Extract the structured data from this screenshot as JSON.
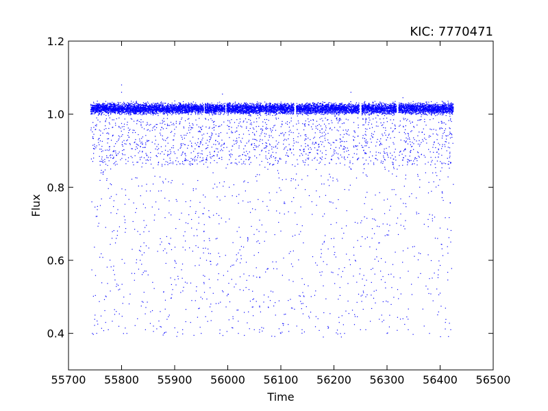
{
  "chart_data": {
    "type": "scatter",
    "title": "KIC: 7770471",
    "xlabel": "Time",
    "ylabel": "Flux",
    "xlim": [
      55700,
      56500
    ],
    "ylim": [
      0.3,
      1.2
    ],
    "xticks": [
      55700,
      55800,
      55900,
      56000,
      56100,
      56200,
      56300,
      56400,
      56500
    ],
    "xtick_labels": [
      "55700",
      "55800",
      "55900",
      "56000",
      "56100",
      "56200",
      "56300",
      "56400",
      "56500"
    ],
    "yticks": [
      0.4,
      0.6,
      0.8,
      1.0,
      1.2
    ],
    "ytick_labels": [
      "0.4",
      "0.6",
      "0.8",
      "1.0",
      "1.2"
    ],
    "grid": false,
    "marker_color": "#0000ff",
    "series": [
      {
        "observation_segments": [
          [
            55742,
            55955
          ],
          [
            55957,
            55995
          ],
          [
            55998,
            56125
          ],
          [
            56129,
            56248
          ],
          [
            56252,
            56318
          ],
          [
            56322,
            56425
          ]
        ],
        "baseline_band": [
          0.995,
          1.035
        ],
        "samples": [
          [
            55800,
            1.08
          ],
          [
            55800,
            1.06
          ],
          [
            55990,
            1.055
          ],
          [
            56232,
            1.06
          ],
          [
            56330,
            1.045
          ],
          [
            55744,
            0.76
          ],
          [
            55752,
            0.72
          ],
          [
            55760,
            0.75
          ],
          [
            55770,
            0.69
          ],
          [
            55780,
            0.73
          ],
          [
            55790,
            0.66
          ],
          [
            55805,
            0.72
          ],
          [
            55820,
            0.63
          ],
          [
            55835,
            0.6
          ],
          [
            55850,
            0.56
          ],
          [
            55870,
            0.74
          ],
          [
            55885,
            0.62
          ],
          [
            55900,
            0.58
          ],
          [
            55920,
            0.54
          ],
          [
            55940,
            0.64
          ],
          [
            55960,
            0.6
          ],
          [
            55980,
            0.66
          ],
          [
            56000,
            0.57
          ],
          [
            56020,
            0.62
          ],
          [
            56040,
            0.52
          ],
          [
            56060,
            0.71
          ],
          [
            56080,
            0.49
          ],
          [
            56100,
            0.68
          ],
          [
            56120,
            0.59
          ],
          [
            56140,
            0.55
          ],
          [
            56160,
            0.61
          ],
          [
            56180,
            0.53
          ],
          [
            56200,
            0.66
          ],
          [
            56220,
            0.58
          ],
          [
            56240,
            0.6
          ],
          [
            56260,
            0.5
          ],
          [
            56280,
            0.63
          ],
          [
            56300,
            0.67
          ],
          [
            56320,
            0.52
          ],
          [
            56340,
            0.57
          ],
          [
            56360,
            0.62
          ],
          [
            56380,
            0.55
          ],
          [
            56400,
            0.51
          ],
          [
            56420,
            0.65
          ],
          [
            55750,
            0.45
          ],
          [
            55770,
            0.43
          ],
          [
            55790,
            0.46
          ],
          [
            55830,
            0.44
          ],
          [
            55860,
            0.42
          ],
          [
            55890,
            0.45
          ],
          [
            55930,
            0.43
          ],
          [
            55970,
            0.46
          ],
          [
            56010,
            0.44
          ],
          [
            56050,
            0.41
          ],
          [
            56090,
            0.45
          ],
          [
            56130,
            0.42
          ],
          [
            56170,
            0.44
          ],
          [
            56210,
            0.43
          ],
          [
            56250,
            0.41
          ],
          [
            56290,
            0.45
          ],
          [
            56330,
            0.44
          ],
          [
            56370,
            0.42
          ],
          [
            56410,
            0.43
          ],
          [
            55745,
            0.4
          ],
          [
            55775,
            0.41
          ],
          [
            55810,
            0.4
          ],
          [
            55845,
            0.41
          ],
          [
            55880,
            0.4
          ],
          [
            55915,
            0.41
          ],
          [
            55950,
            0.4
          ],
          [
            55985,
            0.4
          ],
          [
            56020,
            0.4
          ],
          [
            56060,
            0.41
          ],
          [
            56100,
            0.4
          ],
          [
            56140,
            0.41
          ],
          [
            56180,
            0.39
          ],
          [
            56220,
            0.4
          ],
          [
            56260,
            0.41
          ],
          [
            56300,
            0.4
          ],
          [
            56340,
            0.41
          ],
          [
            56380,
            0.4
          ],
          [
            56420,
            0.41
          ]
        ],
        "clusters": [
          {
            "x_range": [
              55742,
              55955
            ],
            "y_range": [
              0.86,
              0.99
            ],
            "count": 480
          },
          {
            "x_range": [
              55957,
              55995
            ],
            "y_range": [
              0.86,
              0.99
            ],
            "count": 90
          },
          {
            "x_range": [
              55998,
              56125
            ],
            "y_range": [
              0.86,
              0.99
            ],
            "count": 280
          },
          {
            "x_range": [
              56129,
              56248
            ],
            "y_range": [
              0.86,
              0.99
            ],
            "count": 260
          },
          {
            "x_range": [
              56252,
              56318
            ],
            "y_range": [
              0.86,
              0.99
            ],
            "count": 150
          },
          {
            "x_range": [
              56322,
              56425
            ],
            "y_range": [
              0.86,
              0.99
            ],
            "count": 220
          },
          {
            "x_range": [
              55742,
              56425
            ],
            "y_range": [
              0.39,
              0.86
            ],
            "count": 900
          }
        ]
      }
    ]
  }
}
